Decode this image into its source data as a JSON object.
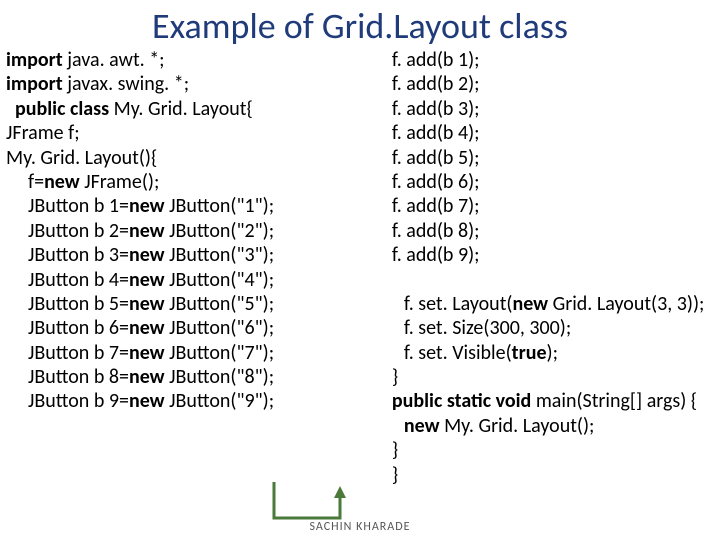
{
  "title": "Example of Grid.Layout class",
  "footer": "SACHIN KHARADE",
  "left": [
    {
      "segs": [
        {
          "t": "import ",
          "b": true
        },
        {
          "t": "java. awt. *;",
          "b": false
        }
      ],
      "indent": 0
    },
    {
      "segs": [
        {
          "t": "import ",
          "b": true
        },
        {
          "t": "javax. swing. *;",
          "b": false
        }
      ],
      "indent": 0
    },
    {
      "segs": [
        {
          "t": "  public class ",
          "b": true
        },
        {
          "t": "My. Grid. Layout{",
          "b": false
        }
      ],
      "indent": 0
    },
    {
      "segs": [
        {
          "t": "JFrame f;",
          "b": false
        }
      ],
      "indent": 0
    },
    {
      "segs": [
        {
          "t": "My. Grid. Layout(){",
          "b": false
        }
      ],
      "indent": 0
    },
    {
      "segs": [
        {
          "t": "f=",
          "b": false
        },
        {
          "t": "new ",
          "b": true
        },
        {
          "t": "JFrame();",
          "b": false
        }
      ],
      "indent": 1
    },
    {
      "segs": [
        {
          "t": "JButton b 1=",
          "b": false
        },
        {
          "t": "new ",
          "b": true
        },
        {
          "t": "JButton(\"1\");",
          "b": false
        }
      ],
      "indent": 1
    },
    {
      "segs": [
        {
          "t": "JButton b 2=",
          "b": false
        },
        {
          "t": "new ",
          "b": true
        },
        {
          "t": "JButton(\"2\");",
          "b": false
        }
      ],
      "indent": 1
    },
    {
      "segs": [
        {
          "t": "JButton b 3=",
          "b": false
        },
        {
          "t": "new ",
          "b": true
        },
        {
          "t": "JButton(\"3\");",
          "b": false
        }
      ],
      "indent": 1
    },
    {
      "segs": [
        {
          "t": "JButton b 4=",
          "b": false
        },
        {
          "t": "new ",
          "b": true
        },
        {
          "t": "JButton(\"4\");",
          "b": false
        }
      ],
      "indent": 1
    },
    {
      "segs": [
        {
          "t": "JButton b 5=",
          "b": false
        },
        {
          "t": "new ",
          "b": true
        },
        {
          "t": "JButton(\"5\");",
          "b": false
        }
      ],
      "indent": 1
    },
    {
      "segs": [
        {
          "t": "JButton b 6=",
          "b": false
        },
        {
          "t": "new ",
          "b": true
        },
        {
          "t": "JButton(\"6\");",
          "b": false
        }
      ],
      "indent": 1
    },
    {
      "segs": [
        {
          "t": "JButton b 7=",
          "b": false
        },
        {
          "t": "new ",
          "b": true
        },
        {
          "t": "JButton(\"7\");",
          "b": false
        }
      ],
      "indent": 1
    },
    {
      "segs": [
        {
          "t": "JButton b 8=",
          "b": false
        },
        {
          "t": "new ",
          "b": true
        },
        {
          "t": "JButton(\"8\");",
          "b": false
        }
      ],
      "indent": 1
    },
    {
      "segs": [
        {
          "t": "JButton b 9=",
          "b": false
        },
        {
          "t": "new ",
          "b": true
        },
        {
          "t": "JButton(\"9\");",
          "b": false
        }
      ],
      "indent": 1
    }
  ],
  "right": [
    {
      "segs": [
        {
          "t": "f. add(b 1);",
          "b": false
        }
      ],
      "indent": 1
    },
    {
      "segs": [
        {
          "t": "f. add(b 2);",
          "b": false
        }
      ],
      "indent": 1
    },
    {
      "segs": [
        {
          "t": "f. add(b 3);",
          "b": false
        }
      ],
      "indent": 1
    },
    {
      "segs": [
        {
          "t": "f. add(b 4);",
          "b": false
        }
      ],
      "indent": 1
    },
    {
      "segs": [
        {
          "t": "f. add(b 5);",
          "b": false
        }
      ],
      "indent": 1
    },
    {
      "segs": [
        {
          "t": "f. add(b 6);",
          "b": false
        }
      ],
      "indent": 1
    },
    {
      "segs": [
        {
          "t": "f. add(b 7);",
          "b": false
        }
      ],
      "indent": 1
    },
    {
      "segs": [
        {
          "t": "f. add(b 8);",
          "b": false
        }
      ],
      "indent": 1
    },
    {
      "segs": [
        {
          "t": "f. add(b 9);",
          "b": false
        }
      ],
      "indent": 1
    },
    {
      "segs": [
        {
          "t": " ",
          "b": false
        }
      ],
      "indent": 1
    },
    {
      "segs": [
        {
          "t": "f. set. Layout(",
          "b": false
        },
        {
          "t": "new ",
          "b": true
        },
        {
          "t": "Grid. Layout(3, 3));",
          "b": false
        }
      ],
      "indent": 2
    },
    {
      "segs": [
        {
          "t": "f. set. Size(300, 300);",
          "b": false
        }
      ],
      "indent": 2
    },
    {
      "segs": [
        {
          "t": "f. set. Visible(",
          "b": false
        },
        {
          "t": "true",
          "b": true
        },
        {
          "t": ");",
          "b": false
        }
      ],
      "indent": 2
    },
    {
      "segs": [
        {
          "t": "}",
          "b": false
        }
      ],
      "indent": 1
    },
    {
      "segs": [
        {
          "t": "public static void ",
          "b": true
        },
        {
          "t": "main(String[] args) {",
          "b": false
        }
      ],
      "indent": 1
    },
    {
      "segs": [
        {
          "t": "new ",
          "b": true
        },
        {
          "t": "My. Grid. Layout();",
          "b": false
        }
      ],
      "indent": 2
    },
    {
      "segs": [
        {
          "t": "}",
          "b": false
        }
      ],
      "indent": 1
    },
    {
      "segs": [
        {
          "t": "}",
          "b": false
        }
      ],
      "indent": 1
    }
  ],
  "arrow": {
    "stroke": "#4a7a39",
    "stroke_width": 3
  }
}
